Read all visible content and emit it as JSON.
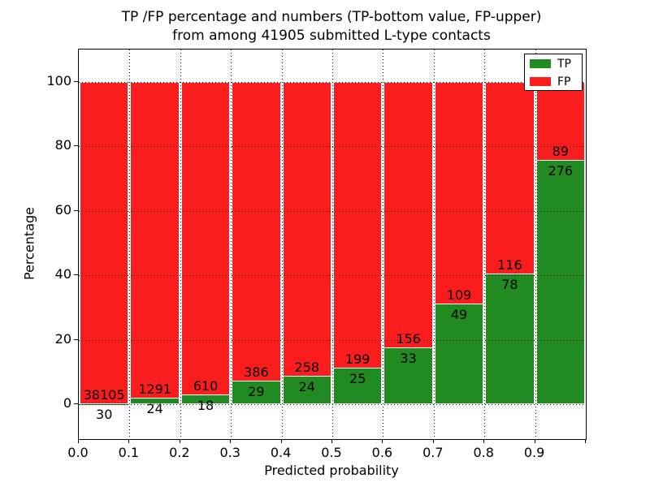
{
  "title": {
    "line1": "TP /FP percentage and numbers (TP-bottom value, FP-upper)",
    "line2": "from among 41905 submitted L-type contacts"
  },
  "axes": {
    "xlabel": "Predicted probability",
    "ylabel": "Percentage"
  },
  "legend": {
    "entries": [
      {
        "label": "TP",
        "color": "#218a21"
      },
      {
        "label": "FP",
        "color": "#fb1d1d"
      }
    ],
    "position": "upper right"
  },
  "chart_data": {
    "type": "bar",
    "stacked": true,
    "normalized_to_percent": true,
    "title": "TP /FP percentage and numbers (TP-bottom value, FP-upper) from among 41905 submitted L-type contacts",
    "xlabel": "Predicted probability",
    "ylabel": "Percentage",
    "total_submitted": 41905,
    "bin_edges": [
      0.0,
      0.1,
      0.2,
      0.3,
      0.4,
      0.5,
      0.6,
      0.7,
      0.8,
      0.9,
      1.0
    ],
    "categories": [
      "0.0-0.1",
      "0.1-0.2",
      "0.2-0.3",
      "0.3-0.4",
      "0.4-0.5",
      "0.5-0.6",
      "0.6-0.7",
      "0.7-0.8",
      "0.8-0.9",
      "0.9-1.0"
    ],
    "series": [
      {
        "name": "TP",
        "color": "#218a21",
        "counts": [
          30,
          24,
          18,
          29,
          24,
          25,
          33,
          49,
          78,
          276
        ]
      },
      {
        "name": "FP",
        "color": "#fb1d1d",
        "counts": [
          38105,
          1291,
          610,
          386,
          258,
          199,
          156,
          109,
          116,
          89
        ]
      }
    ],
    "tp_percent_of_bin": [
      0.08,
      1.83,
      2.87,
      6.99,
      8.51,
      11.16,
      17.46,
      31.01,
      40.21,
      75.62
    ],
    "x_tick_labels": [
      "0.0",
      "0.1",
      "0.2",
      "0.3",
      "0.4",
      "0.5",
      "0.6",
      "0.7",
      "0.8",
      "0.9"
    ],
    "y_tick_values": [
      0,
      20,
      40,
      60,
      80,
      100
    ],
    "y_tick_labels": [
      "0",
      "20",
      "40",
      "60",
      "80",
      "100"
    ],
    "xlim": [
      0.0,
      1.0
    ],
    "ylim": [
      -10.75,
      110.0
    ],
    "grid": "dotted",
    "legend_position": "upper right",
    "bar_edge_color": "#ffffff"
  }
}
